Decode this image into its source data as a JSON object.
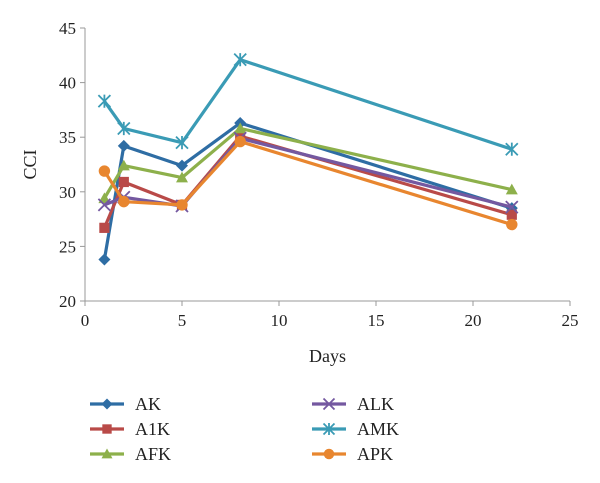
{
  "chart_data": {
    "type": "line",
    "title": "",
    "xlabel": "Days",
    "ylabel": "CCI",
    "xlim": [
      0,
      25
    ],
    "ylim": [
      20,
      45
    ],
    "xticks": [
      0,
      5,
      10,
      15,
      20,
      25
    ],
    "yticks": [
      20,
      25,
      30,
      35,
      40,
      45
    ],
    "grid": false,
    "legend_position": "bottom",
    "series": [
      {
        "name": "AK",
        "color": "#2E6DA4",
        "marker": "diamond",
        "x": [
          1,
          2,
          5,
          8,
          22
        ],
        "y": [
          23.8,
          34.2,
          32.4,
          36.3,
          28.5
        ]
      },
      {
        "name": "A1K",
        "color": "#B94A48",
        "marker": "square",
        "x": [
          1,
          2,
          5,
          8,
          22
        ],
        "y": [
          26.7,
          30.9,
          28.8,
          35.1,
          27.9
        ]
      },
      {
        "name": "AFK",
        "color": "#8DB04B",
        "marker": "triangle",
        "x": [
          1,
          2,
          5,
          8,
          22
        ],
        "y": [
          29.4,
          32.4,
          31.3,
          35.8,
          30.2
        ]
      },
      {
        "name": "ALK",
        "color": "#7458A0",
        "marker": "x",
        "x": [
          1,
          2,
          5,
          8,
          22
        ],
        "y": [
          28.8,
          29.5,
          28.7,
          34.9,
          28.6
        ]
      },
      {
        "name": "AMK",
        "color": "#3A9BB5",
        "marker": "asterisk",
        "x": [
          1,
          2,
          5,
          8,
          22
        ],
        "y": [
          38.3,
          35.8,
          34.5,
          42.1,
          33.9
        ]
      },
      {
        "name": "APK",
        "color": "#E8862F",
        "marker": "circle",
        "x": [
          1,
          2,
          5,
          8,
          22
        ],
        "y": [
          31.9,
          29.1,
          28.8,
          34.6,
          27.0
        ]
      }
    ]
  }
}
